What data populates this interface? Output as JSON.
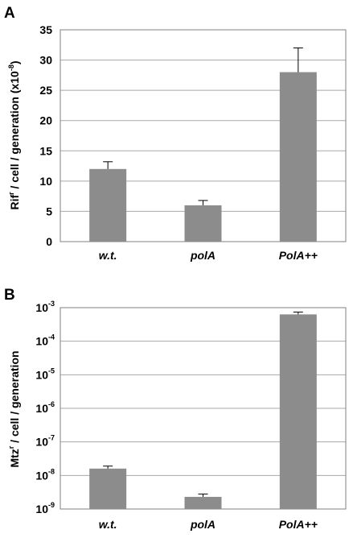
{
  "chart_data": [
    {
      "panel": "A",
      "type": "bar",
      "categories": [
        "w.t.",
        "polA",
        "PolA++"
      ],
      "values": [
        12,
        6,
        28
      ],
      "errors": [
        1.2,
        0.8,
        4
      ],
      "ylabel": {
        "base": "Rif",
        "sup": "r",
        "rest": " / cell / generation (x10",
        "exp": "-8",
        "end": ")"
      },
      "ylim": [
        0,
        35
      ],
      "yticks": [
        0,
        5,
        10,
        15,
        20,
        25,
        30,
        35
      ],
      "grid": true,
      "bar_color": "#8c8c8c"
    },
    {
      "panel": "B",
      "type": "bar",
      "yscale": "log",
      "categories": [
        "w.t.",
        "polA",
        "PolA++"
      ],
      "values": [
        1.6e-08,
        2.3e-09,
        0.00063
      ],
      "errors_upper": [
        1.9e-08,
        2.8e-09,
        0.00074
      ],
      "ylabel": {
        "base": "Mtz",
        "sup": "r",
        "rest": " / cell / generation"
      },
      "ylim": [
        1e-09,
        0.001
      ],
      "yticks": [
        "10",
        "10",
        "10",
        "10",
        "10",
        "10",
        "10"
      ],
      "ytick_exps": [
        "-9",
        "-8",
        "-7",
        "-6",
        "-5",
        "-4",
        "-3"
      ],
      "grid": true,
      "bar_color": "#8c8c8c"
    }
  ]
}
